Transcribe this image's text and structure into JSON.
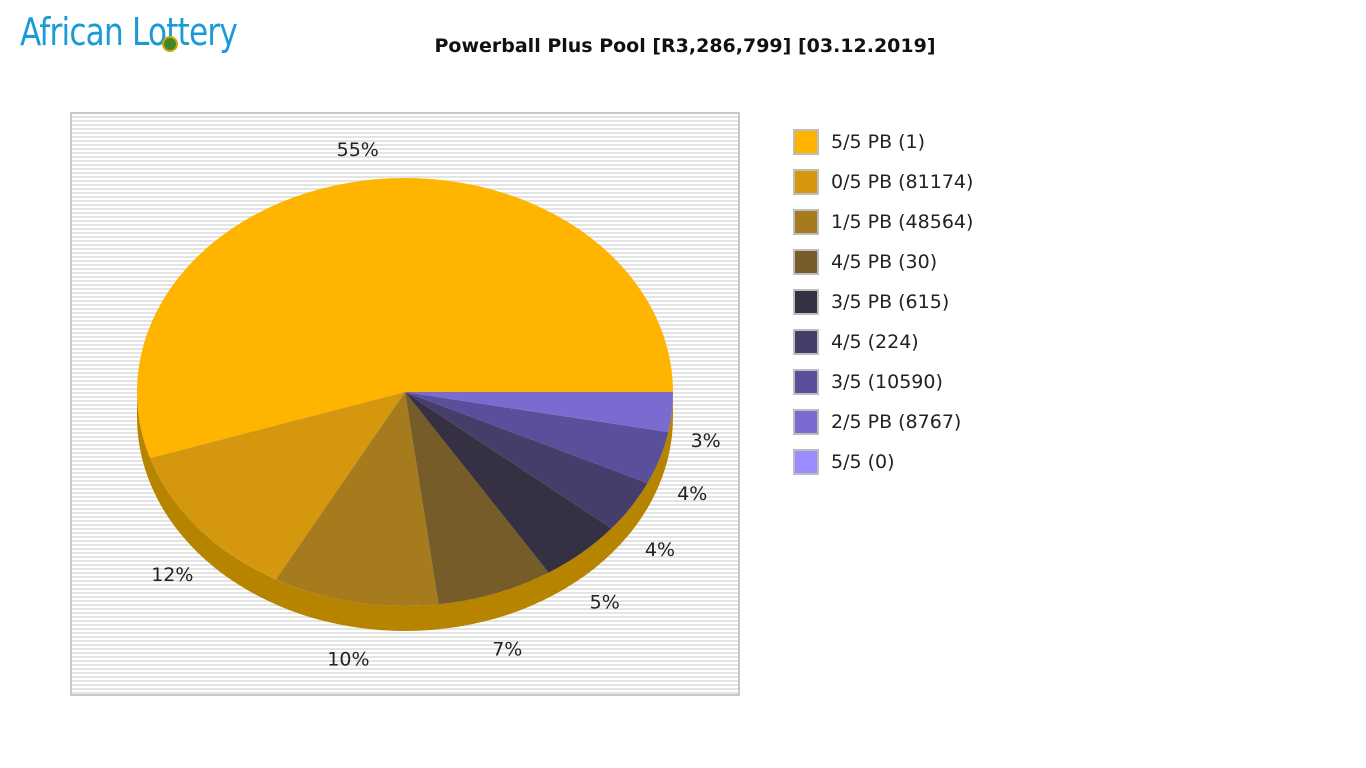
{
  "logo": {
    "text": "African Lottery",
    "icon": "lottery-ball-icon"
  },
  "chart_data": {
    "type": "pie",
    "title": "Powerball Plus Pool [R3,286,799] [03.12.2019]",
    "legend_position": "right",
    "slices": [
      {
        "label": "5/5 PB (1)",
        "value": 55,
        "pct_label": "55%",
        "color": "#ffb400"
      },
      {
        "label": "0/5 PB (81174)",
        "value": 12,
        "pct_label": "12%",
        "color": "#d4970e"
      },
      {
        "label": "1/5 PB (48564)",
        "value": 10,
        "pct_label": "10%",
        "color": "#a57b1d"
      },
      {
        "label": "4/5 PB (30)",
        "value": 7,
        "pct_label": "7%",
        "color": "#765c29"
      },
      {
        "label": "3/5 PB (615)",
        "value": 5,
        "pct_label": "5%",
        "color": "#353143"
      },
      {
        "label": "4/5 (224)",
        "value": 4,
        "pct_label": "4%",
        "color": "#463d6b"
      },
      {
        "label": "3/5 (10590)",
        "value": 4,
        "pct_label": "4%",
        "color": "#5a4f9b"
      },
      {
        "label": "2/5 PB (8767)",
        "value": 3,
        "pct_label": "3%",
        "color": "#7a6bd0"
      },
      {
        "label": "5/5 (0)",
        "value": 0,
        "pct_label": "",
        "color": "#9b8cff"
      }
    ],
    "side_color": "#b78400"
  }
}
